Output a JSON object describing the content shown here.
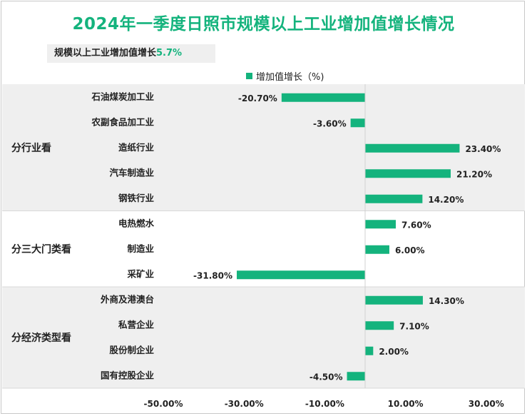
{
  "title": "2024年一季度日照市规模以上工业增加值增长情况",
  "subtitle": {
    "label": "规模以上工业增加值增长",
    "value": "5.7%"
  },
  "legend": {
    "label": "增加值增长（%)"
  },
  "colors": {
    "bar": "#14b37d",
    "band": "#efefef",
    "title": "#14b37d"
  },
  "chart_data": {
    "type": "bar",
    "orientation": "horizontal",
    "xlim": [
      -50,
      30
    ],
    "x_ticks": [
      "-50.00%",
      "-30.00%",
      "-10.00%",
      "10.00%",
      "30.00%"
    ],
    "x_tick_values": [
      -50,
      -30,
      -10,
      10,
      30
    ],
    "groups": [
      {
        "name": "分行业看",
        "categories": [
          "石油煤炭加工业",
          "农副食品加工业",
          "造纸行业",
          "汽车制造业",
          "钢铁行业"
        ],
        "values": [
          -20.7,
          -3.6,
          23.4,
          21.2,
          14.2
        ],
        "labels": [
          "-20.70%",
          "-3.60%",
          "23.40%",
          "21.20%",
          "14.20%"
        ]
      },
      {
        "name": "分三大门类看",
        "categories": [
          "电热燃水",
          "制造业",
          "采矿业"
        ],
        "values": [
          7.6,
          6.0,
          -31.8
        ],
        "labels": [
          "7.60%",
          "6.00%",
          "-31.80%"
        ]
      },
      {
        "name": "分经济类型看",
        "categories": [
          "外商及港澳台",
          "私营企业",
          "股份制企业",
          "国有控股企业"
        ],
        "values": [
          14.3,
          7.1,
          2.0,
          -4.5
        ],
        "labels": [
          "14.30%",
          "7.10%",
          "2.00%",
          "-4.50%"
        ]
      }
    ]
  }
}
